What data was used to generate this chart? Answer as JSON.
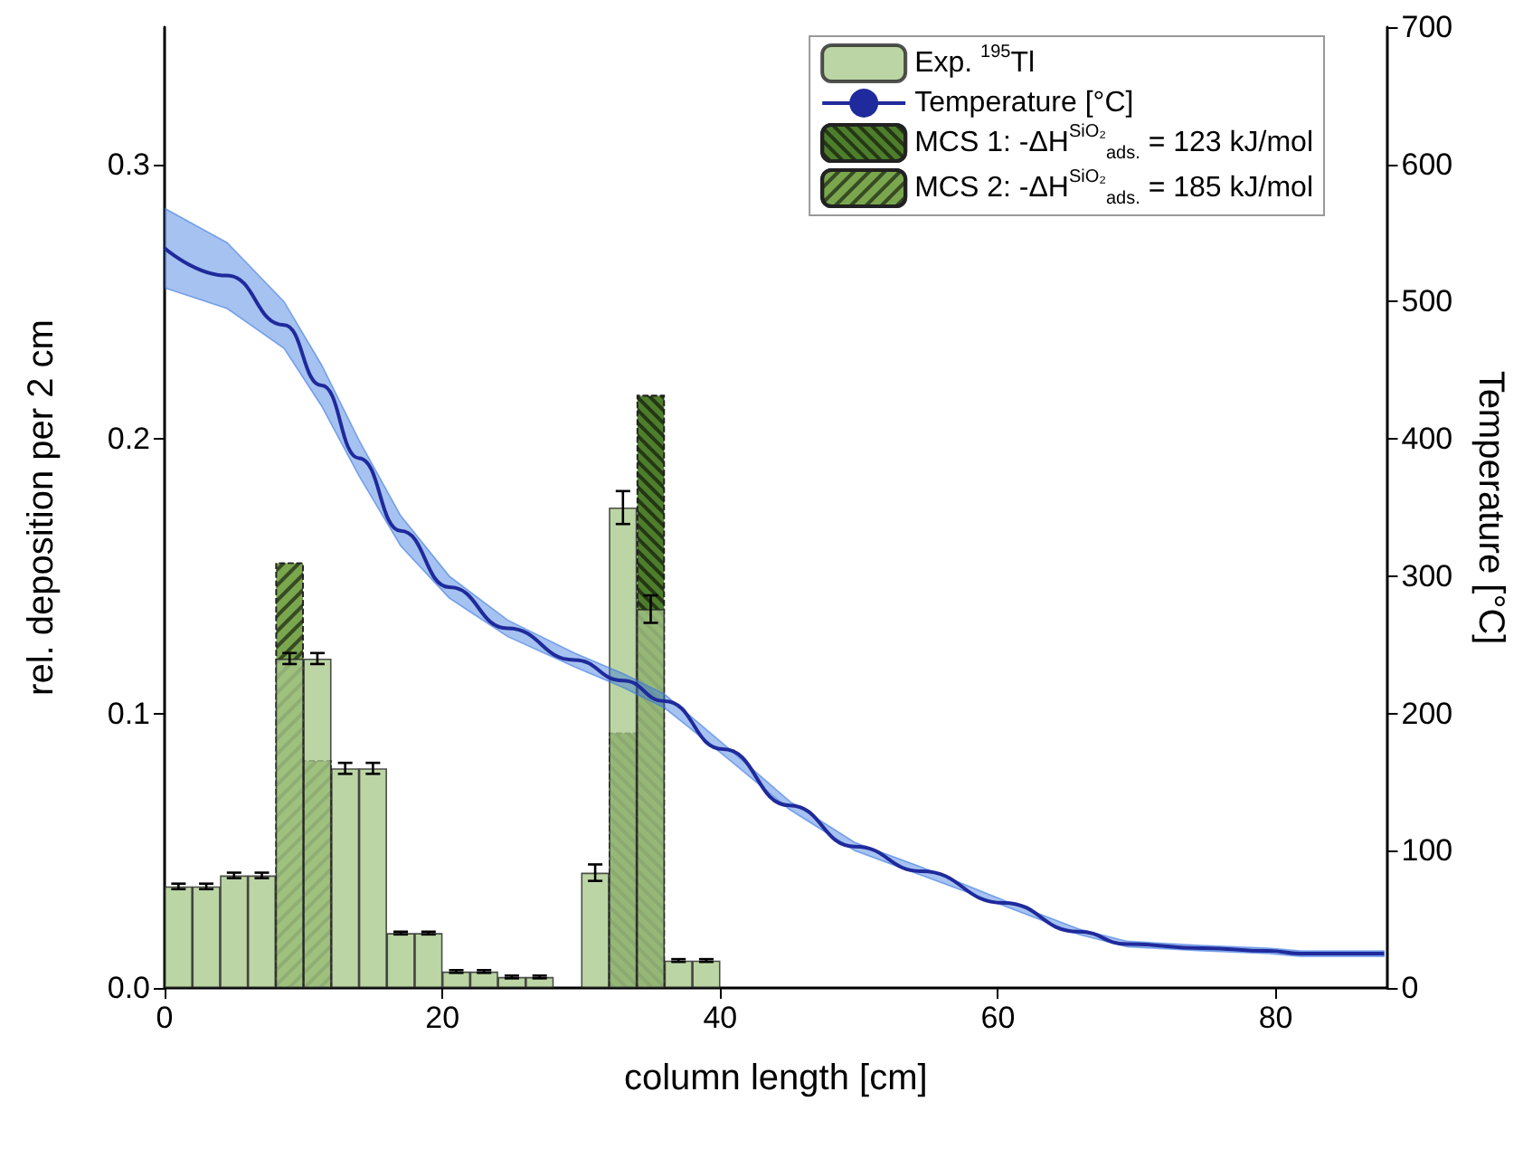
{
  "chart_data": {
    "type": "bar",
    "xlabel": "column length [cm]",
    "ylabel": "rel. deposition per 2 cm",
    "y2label": "Temperature [°C]",
    "x": [
      1,
      3,
      5,
      7,
      9,
      11,
      13,
      15,
      17,
      19,
      21,
      23,
      25,
      27,
      29,
      31,
      33,
      35,
      37,
      39
    ],
    "series": [
      {
        "name": "Exp. $^{195}$Tl",
        "color": "#a9c98c",
        "values": [
          0.037,
          0.037,
          0.041,
          0.041,
          0.12,
          0.12,
          0.08,
          0.08,
          0.02,
          0.02,
          0.006,
          0.006,
          0.004,
          0.004,
          null,
          0.042,
          0.175,
          0.138,
          0.01,
          0.01
        ],
        "errors": [
          0.001,
          0.001,
          0.001,
          0.001,
          0.002,
          0.002,
          0.002,
          0.002,
          0.0005,
          0.0005,
          0.0005,
          0.0005,
          0.0005,
          0.0005,
          null,
          0.003,
          0.006,
          0.005,
          0.0005,
          0.0005
        ]
      },
      {
        "name": "Temperature [°C]",
        "type": "line",
        "axis": "y2",
        "color": "#1f2a9c",
        "x": [
          0,
          4.5,
          8.6,
          11.3,
          14,
          17,
          20.5,
          24.7,
          29.5,
          33,
          36,
          40.2,
          45,
          49.7,
          54.5,
          60.4,
          65.8,
          69.3,
          74.7,
          79.5,
          81.8,
          87.8
        ],
        "values": [
          539,
          519,
          483,
          439,
          386,
          333,
          292,
          262,
          239,
          224,
          209,
          174,
          133,
          103,
          85,
          62,
          41,
          32,
          29,
          27,
          25,
          25
        ],
        "lower": [
          510,
          495,
          466,
          424,
          373,
          322,
          284,
          256,
          234,
          219,
          204,
          170,
          130,
          100,
          82,
          60,
          39,
          30,
          27,
          25,
          23,
          23
        ],
        "upper": [
          568,
          543,
          500,
          454,
          399,
          344,
          300,
          268,
          244,
          229,
          214,
          178,
          136,
          106,
          88,
          64,
          43,
          34,
          31,
          29,
          27,
          27
        ]
      },
      {
        "name": "MCS 1: -ΔH$^{SiO₂}$$_{ads.}$ = 123 kJ/mol",
        "color": "#4e7d2c",
        "values": [
          null,
          null,
          null,
          null,
          null,
          null,
          null,
          null,
          null,
          null,
          null,
          null,
          null,
          null,
          null,
          null,
          0.093,
          0.216,
          null,
          null
        ]
      },
      {
        "name": "MCS 2: -ΔH$^{SiO₂}$$_{ads.}$ = 185 kJ/mol",
        "color": "#7aa64e",
        "values": [
          null,
          null,
          null,
          null,
          0.155,
          0.083,
          null,
          null,
          null,
          null,
          null,
          null,
          null,
          null,
          null,
          null,
          null,
          null,
          null,
          null
        ]
      }
    ],
    "xlim": [
      0,
      88
    ],
    "xticks": [
      0,
      20,
      40,
      60,
      80
    ],
    "ylim": [
      0,
      0.35
    ],
    "yticks": [
      {
        "value": 0,
        "label": "0.0"
      },
      0.1,
      0.2,
      0.3
    ],
    "y2lim": [
      0,
      700
    ],
    "y2ticks": [
      0,
      100,
      200,
      300,
      400,
      500,
      600,
      700
    ],
    "grid": false,
    "legend": "top right"
  }
}
